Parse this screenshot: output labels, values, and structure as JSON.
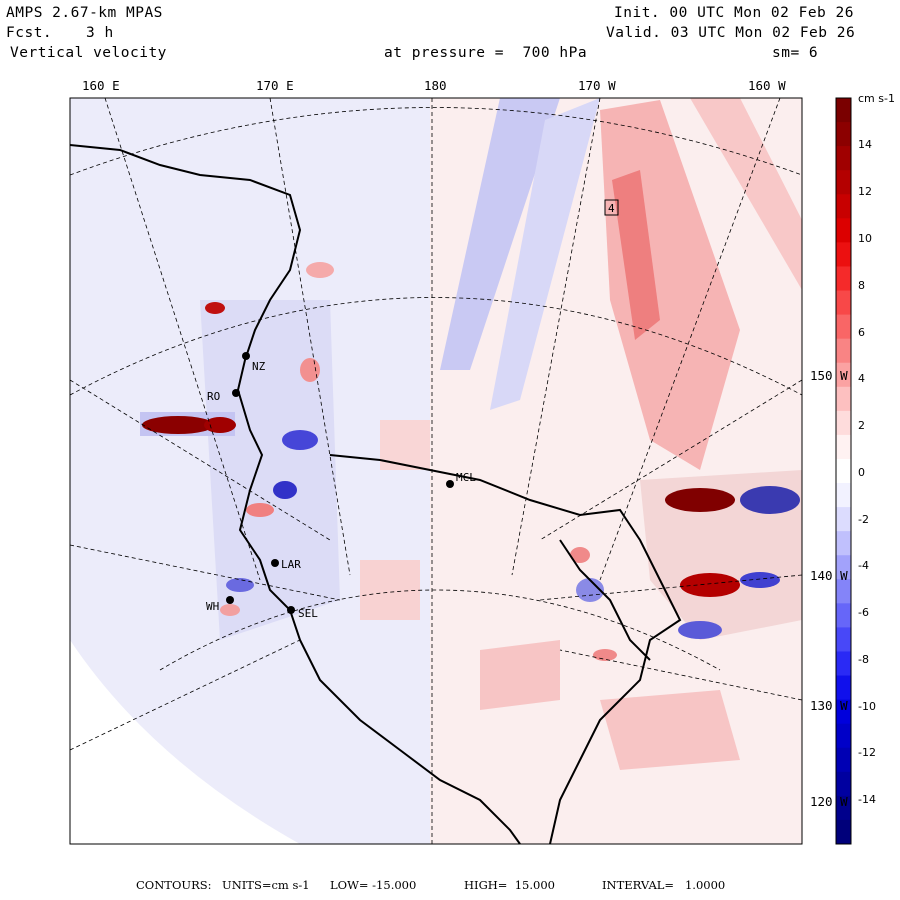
{
  "header": {
    "model": "AMPS 2.67-km MPAS",
    "forecast_label": "Fcst.",
    "forecast_value": "3 h",
    "field": "Vertical velocity",
    "init": "Init. 00 UTC Mon 02 Feb 26",
    "valid": "Valid. 03 UTC Mon 02 Feb 26",
    "level": "at pressure =  700 hPa",
    "smoothing": "sm= 6"
  },
  "top_longitudes": [
    "160 E",
    "170 E",
    "180",
    "170 W",
    "160 W"
  ],
  "right_latitudes": [
    "150 W",
    "140 W",
    "130 W",
    "120 W"
  ],
  "colorbar": {
    "units": "cm s-1",
    "labels": [
      "14",
      "12",
      "10",
      "8",
      "6",
      "4",
      "2",
      "0",
      "-2",
      "-4",
      "-6",
      "-8",
      "-10",
      "-12",
      "-14"
    ],
    "colors": [
      "#7a0000",
      "#8c0000",
      "#a00000",
      "#b40000",
      "#c80000",
      "#dc0000",
      "#ec1010",
      "#f52a2a",
      "#f84848",
      "#f96666",
      "#f98484",
      "#fba2a2",
      "#fdc0c0",
      "#fedcdc",
      "#fff2f2",
      "#ffffff",
      "#f2f2ff",
      "#dcdcfe",
      "#c0c0fd",
      "#a2a2fb",
      "#8484f9",
      "#6666f9",
      "#4848f8",
      "#2a2af5",
      "#1010ec",
      "#0000dc",
      "#0000c8",
      "#0000b4",
      "#0000a0",
      "#00008c",
      "#00007a"
    ]
  },
  "stations": [
    "NZ",
    "RO",
    "MCL",
    "WH",
    "SEL",
    "LAR"
  ],
  "max_label": "4",
  "footer": {
    "contours_label": "CONTOURS:",
    "units": "UNITS=cm s-1",
    "low": "LOW= -15.000",
    "high": "HIGH=  15.000",
    "interval": "INTERVAL=   1.0000"
  }
}
